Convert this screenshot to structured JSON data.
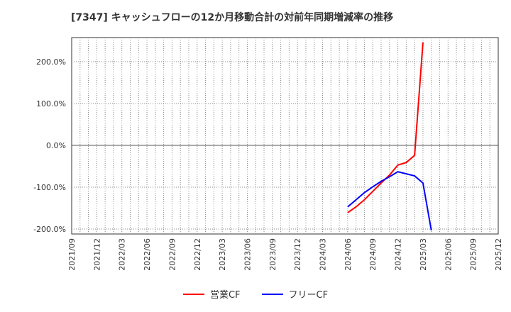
{
  "chart_data": {
    "type": "line",
    "title": "[7347]  キャッシュフローの12か月移動合計の対前年同期増減率の推移",
    "xlabel": "",
    "ylabel": "",
    "ylim": [
      -210,
      260
    ],
    "yticks": [
      200,
      100,
      0,
      -100,
      -200
    ],
    "ytick_labels": [
      "200.0%",
      "100.0%",
      "0.0%",
      "-100.0%",
      "-200.0%"
    ],
    "xtick_labels": [
      "2021/09",
      "2021/12",
      "2022/03",
      "2022/06",
      "2022/09",
      "2022/12",
      "2023/03",
      "2023/06",
      "2023/09",
      "2023/12",
      "2024/03",
      "2024/06",
      "2024/09",
      "2024/12",
      "2025/03",
      "2025/06",
      "2025/09",
      "2025/12"
    ],
    "x": [
      "2024/06",
      "2024/07",
      "2024/08",
      "2024/09",
      "2024/10",
      "2024/11",
      "2024/12",
      "2025/01",
      "2025/02",
      "2025/03",
      "2025/04"
    ],
    "series": [
      {
        "name": "営業CF",
        "color": "#ff0000",
        "values": [
          -161,
          -147,
          -130,
          -110,
          -90,
          -71,
          -47,
          -41,
          -24,
          246,
          null
        ]
      },
      {
        "name": "フリーCF",
        "color": "#0000ff",
        "values": [
          -147,
          -130,
          -113,
          -99,
          -86,
          -75,
          -63,
          -68,
          -73,
          -90,
          -203
        ]
      }
    ],
    "grid": true,
    "legend": "bottom"
  }
}
